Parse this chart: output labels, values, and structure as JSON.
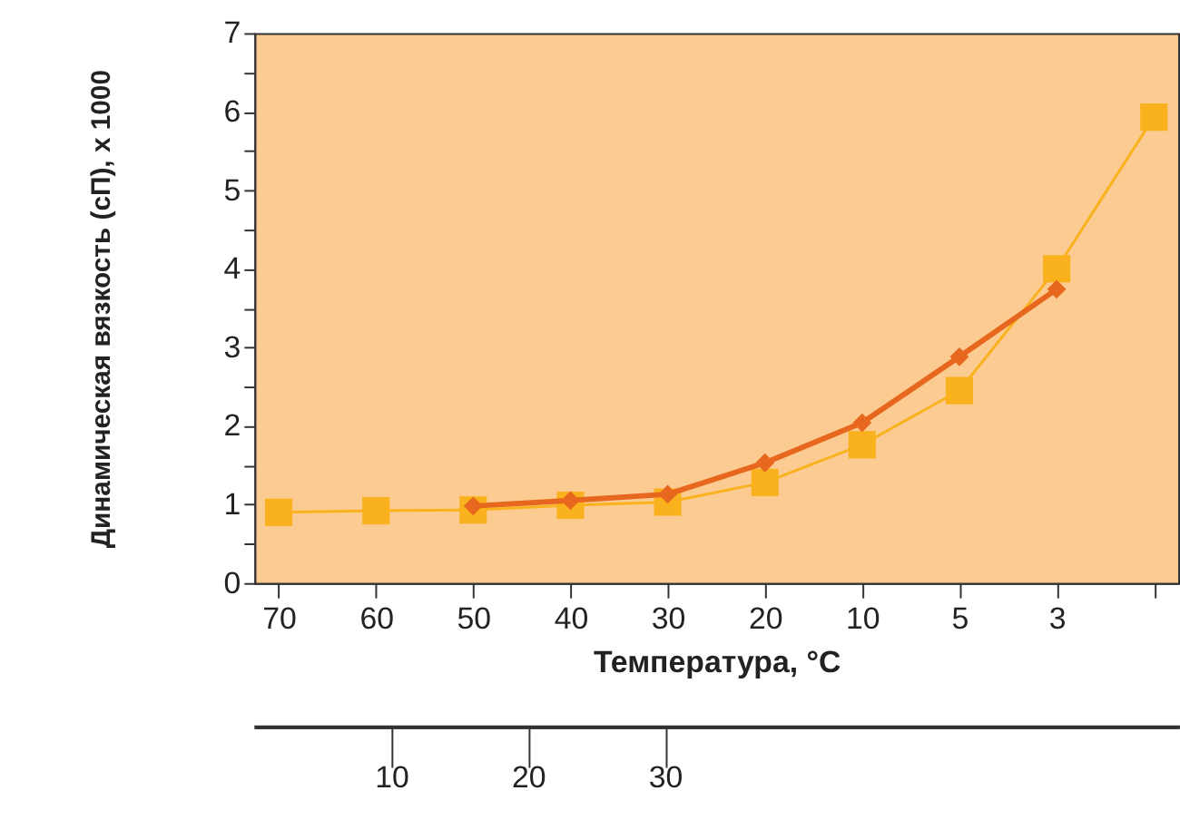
{
  "chart_data": {
    "type": "line",
    "xlabel": "Температура,  °C",
    "ylabel": "Динамическая вязкость (сП), x 1000",
    "categories": [
      "70",
      "60",
      "50",
      "40",
      "30",
      "20",
      "10",
      "5",
      "3",
      null
    ],
    "series": [
      {
        "color": "#f9b21d",
        "marker": "square",
        "line_style": "solid",
        "values": [
          0.9,
          0.92,
          0.93,
          0.99,
          1.03,
          1.28,
          1.76,
          2.45,
          4.0,
          5.93
        ]
      },
      {
        "color": "#e8671e",
        "marker": "diamond",
        "line_style": "solid",
        "values": [
          null,
          null,
          0.98,
          1.05,
          1.13,
          1.53,
          2.04,
          2.88,
          3.74,
          null
        ]
      }
    ],
    "ylim": [
      0,
      7
    ],
    "yticks": [
      0,
      {
        "value": 0.5,
        "label": null
      },
      1,
      {
        "value": 1.5,
        "label": null
      },
      2,
      {
        "value": 2.5,
        "label": null
      },
      3,
      {
        "value": 3.5,
        "label": null
      },
      4,
      {
        "value": 4.5,
        "label": null
      },
      5,
      {
        "value": 5.5,
        "label": null
      },
      6,
      {
        "value": 6.5,
        "label": null
      },
      7
    ],
    "x2lim": [
      0,
      67.5
    ],
    "x2ticks": [
      10,
      20,
      30
    ],
    "grid": false
  }
}
